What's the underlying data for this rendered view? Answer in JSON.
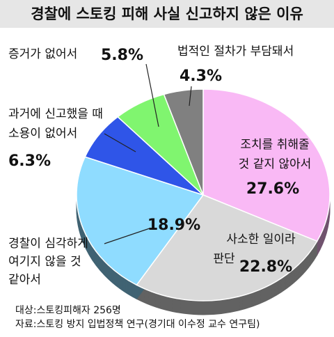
{
  "chart_data": {
    "type": "pie",
    "title": "경찰에 스토킹 피해 사실 신고하지 않은 이유",
    "categories": [
      [
        "조치를 취해줄",
        "것 같지 않아서"
      ],
      [
        "사소한 일이라",
        "판단"
      ],
      [
        "경찰이 심각하게",
        "여기지 않을 것",
        "같아서"
      ],
      [
        "과거에 신고했을 때",
        "소용이 없어서"
      ],
      [
        "증거가 없어서"
      ],
      [
        "법적인 절차가 부담돼서"
      ]
    ],
    "values": [
      27.6,
      22.8,
      18.9,
      6.3,
      5.8,
      4.3
    ],
    "value_labels": [
      "27.6%",
      "22.8%",
      "18.9%",
      "6.3%",
      "5.8%",
      "4.3%"
    ],
    "colors": [
      "#f9b9f5",
      "#d9d9d9",
      "#8fdcff",
      "#2f55e8",
      "#80f56f",
      "#808080"
    ],
    "notes": [
      "대상:스토킹피해자 256명",
      "자료:스토킹 방지 입법정책 연구(경기대 이수정 교수 연구팀)"
    ]
  }
}
